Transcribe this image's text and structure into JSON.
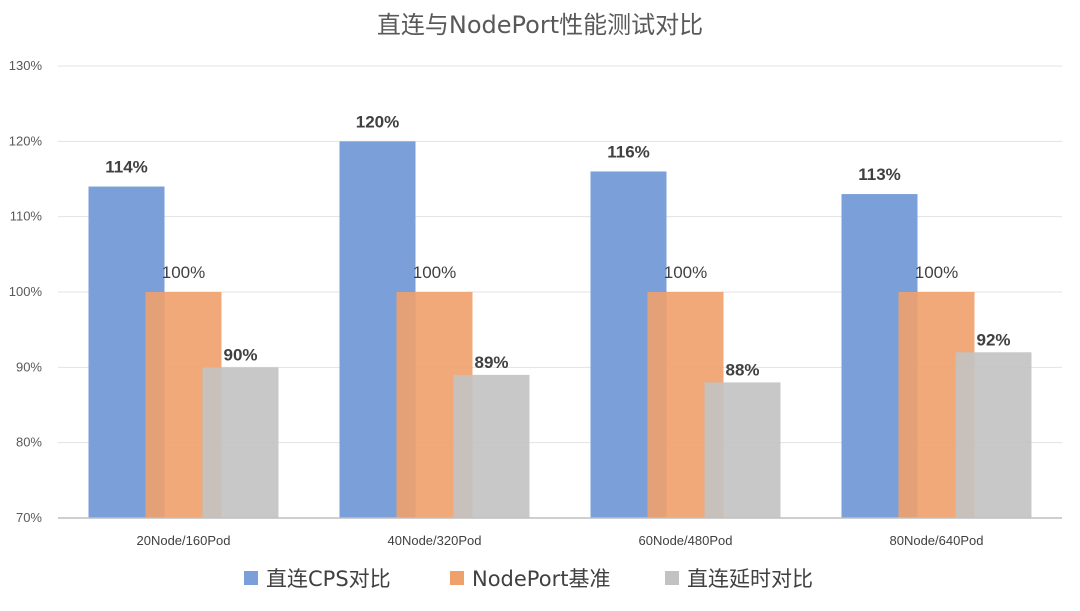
{
  "chart_data": {
    "type": "bar",
    "title": "直连与NodePort性能测试对比",
    "categories": [
      "20Node/160Pod",
      "40Node/320Pod",
      "60Node/480Pod",
      "80Node/640Pod"
    ],
    "series": [
      {
        "name": "直连CPS对比",
        "values": [
          114,
          120,
          116,
          113
        ],
        "labels": [
          "114%",
          "120%",
          "116%",
          "113%"
        ],
        "color": "#7b9fd9",
        "label_bold": true
      },
      {
        "name": "NodePort基准",
        "values": [
          100,
          100,
          100,
          100
        ],
        "labels": [
          "100%",
          "100%",
          "100%",
          "100%"
        ],
        "color": "#f0a06a",
        "label_bold": false
      },
      {
        "name": "直连延时对比",
        "values": [
          90,
          89,
          88,
          92
        ],
        "labels": [
          "90%",
          "89%",
          "88%",
          "92%"
        ],
        "color": "#c2c2c2",
        "label_bold": true
      }
    ],
    "ylim": [
      70,
      130
    ],
    "yticks": [
      70,
      80,
      90,
      100,
      110,
      120,
      130
    ],
    "ytick_labels": [
      "70%",
      "80%",
      "90%",
      "100%",
      "110%",
      "120%",
      "130%"
    ],
    "grid": true,
    "legend": "bottom"
  }
}
